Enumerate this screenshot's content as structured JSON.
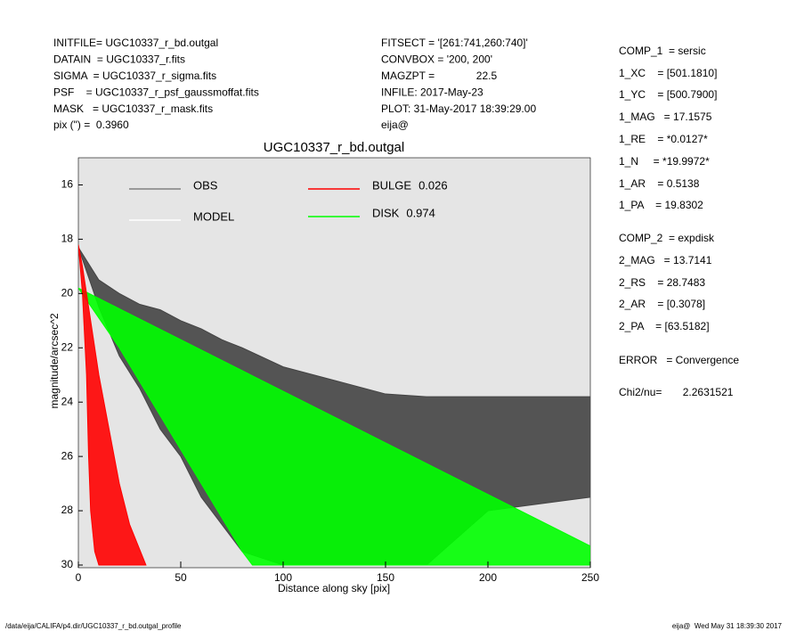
{
  "header": {
    "left": [
      "INITFILE= UGC10337_r_bd.outgal",
      "DATAIN  = UGC10337_r.fits",
      "SIGMA  = UGC10337_r_sigma.fits",
      "PSF    = UGC10337_r_psf_gaussmoffat.fits",
      "MASK   = UGC10337_r_mask.fits",
      "pix (\") =  0.3960"
    ],
    "middle": [
      "FITSECT = '[261:741,260:740]'",
      "CONVBOX = '200, 200'",
      "MAGZPT =              22.5",
      "INFILE: 2017-May-23",
      "PLOT: 31-May-2017 18:39:29.00",
      "eija@"
    ],
    "right": [
      "COMP_1  = sersic",
      "1_XC    = [501.1810]",
      "1_YC    = [500.7900]",
      "1_MAG   = 17.1575",
      "1_RE    = *0.0127*",
      "1_N     = *19.9972*",
      "1_AR    = 0.5138",
      "1_PA    = 19.8302",
      "COMP_2  = expdisk",
      "2_MAG   = 13.7141",
      "2_RS    = 28.7483",
      "2_AR    = [0.3078]",
      "2_PA    = [63.5182]",
      "ERROR   = Convergence",
      "Chi2/nu=       2.2631521"
    ]
  },
  "footer": {
    "left": "/data/eija/CALIFA/p4.dir/UGC10337_r_bd.outgal_profile",
    "right": "eija@  Wed May 31 18:39:30 2017"
  },
  "chart_data": {
    "type": "band",
    "title": "UGC10337_r_bd.outgal",
    "x_label": "Distance along sky [pix]",
    "y_label": "magnitude/arcsec^2",
    "xlim": [
      0,
      250
    ],
    "xticks": [
      0,
      50,
      100,
      150,
      200,
      250
    ],
    "ylim": [
      15,
      30
    ],
    "yticks": [
      16,
      18,
      20,
      22,
      24,
      26,
      28,
      30
    ],
    "y_inverted": true,
    "legend": [
      {
        "name": "OBS",
        "color": "#808080"
      },
      {
        "name": "MODEL",
        "color": "#ffffff"
      },
      {
        "name": "BULGE",
        "fraction": 0.026,
        "color": "#ff0000"
      },
      {
        "name": "DISK",
        "fraction": 0.974,
        "color": "#00ff00"
      }
    ],
    "series": [
      {
        "name": "OBS",
        "color": "#444444",
        "x": [
          0,
          10,
          20,
          30,
          40,
          50,
          60,
          70,
          80,
          100,
          150,
          170,
          200,
          250
        ],
        "min": [
          18.3,
          19.5,
          20.0,
          20.4,
          20.6,
          21.0,
          21.3,
          21.7,
          22.0,
          22.7,
          23.7,
          23.8,
          23.8,
          23.8
        ],
        "max": [
          18.3,
          20.5,
          22.3,
          23.5,
          25.0,
          26.0,
          27.5,
          28.5,
          29.5,
          30,
          30,
          30,
          28,
          27.5
        ]
      },
      {
        "name": "DISK",
        "color": "#00ff00",
        "x": [
          0,
          20,
          40,
          60,
          80,
          85,
          150,
          250
        ],
        "min": [
          19.8,
          20.56,
          21.32,
          22.08,
          22.84,
          23.03,
          25.5,
          29.3
        ],
        "max": [
          19.8,
          22.0,
          24.5,
          27.0,
          29.5,
          30,
          30,
          30
        ]
      },
      {
        "name": "BULGE",
        "color": "#ff0000",
        "x": [
          0,
          2,
          3,
          4,
          5,
          6,
          8,
          10,
          15,
          20,
          25,
          33
        ],
        "min": [
          18.2,
          19.0,
          19.5,
          20.0,
          20.5,
          21.0,
          22.0,
          23.0,
          25.0,
          27.0,
          28.5,
          30
        ],
        "max": [
          18.2,
          20.0,
          21.5,
          23.0,
          26.0,
          28.0,
          29.5,
          30,
          30,
          30,
          30,
          30
        ]
      }
    ]
  }
}
